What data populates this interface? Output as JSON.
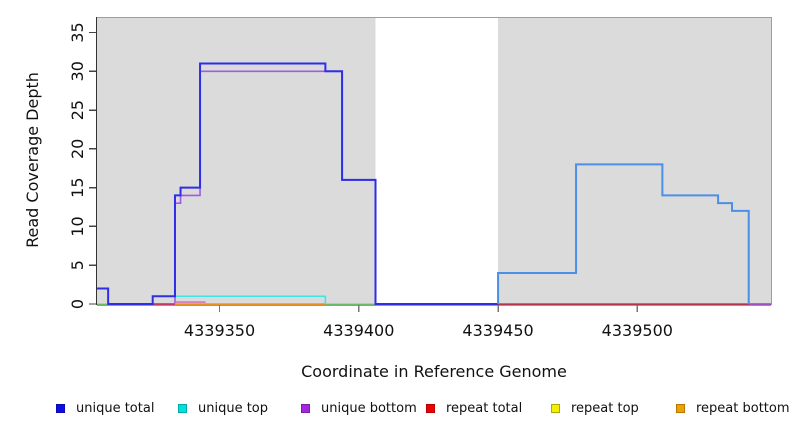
{
  "chart_data": {
    "type": "line",
    "subtype": "step-coverage-plot",
    "title": "",
    "xlabel": "Coordinate in Reference Genome",
    "ylabel": "Read Coverage Depth",
    "xlim": [
      4339306,
      4339548
    ],
    "ylim": [
      0,
      37
    ],
    "grid": false,
    "x_ticks": [
      {
        "value": 4339350,
        "label": "4339350"
      },
      {
        "value": 4339400,
        "label": "4339400"
      },
      {
        "value": 4339450,
        "label": "4339450"
      },
      {
        "value": 4339500,
        "label": "4339500"
      }
    ],
    "y_ticks": [
      {
        "value": 0,
        "label": "0"
      },
      {
        "value": 5,
        "label": "5"
      },
      {
        "value": 10,
        "label": "10"
      },
      {
        "value": 15,
        "label": "15"
      },
      {
        "value": 20,
        "label": "20"
      },
      {
        "value": 25,
        "label": "25"
      },
      {
        "value": 30,
        "label": "30"
      },
      {
        "value": 35,
        "label": "35"
      }
    ],
    "shaded_regions": [
      {
        "x0": 4339306,
        "x1": 4339406,
        "color": "#DBDBDB"
      },
      {
        "x0": 4339450,
        "x1": 4339548,
        "color": "#DBDBDB"
      }
    ],
    "series": [
      {
        "name": "unique total",
        "steps": [
          [
            4339306,
            2
          ],
          [
            4339310,
            0
          ],
          [
            4339326,
            1
          ],
          [
            4339334,
            14
          ],
          [
            4339336,
            15
          ],
          [
            4339343,
            31
          ],
          [
            4339388,
            30
          ],
          [
            4339394,
            16
          ],
          [
            4339406,
            0
          ],
          [
            4339450,
            4
          ],
          [
            4339478,
            18
          ],
          [
            4339509,
            14
          ],
          [
            4339529,
            13
          ],
          [
            4339534,
            12
          ],
          [
            4339540,
            0
          ]
        ],
        "end": 4339548
      },
      {
        "name": "unique top",
        "steps": [
          [
            4339306,
            0
          ],
          [
            4339326,
            1
          ],
          [
            4339388,
            0
          ]
        ],
        "end": 4339548
      },
      {
        "name": "unique bottom",
        "steps": [
          [
            4339306,
            0
          ],
          [
            4339334,
            13
          ],
          [
            4339336,
            14
          ],
          [
            4339343,
            30
          ],
          [
            4339394,
            16
          ],
          [
            4339406,
            0
          ]
        ],
        "end": 4339548
      },
      {
        "name": "repeat total",
        "steps": [
          [
            4339306,
            0
          ]
        ],
        "end": 4339548
      },
      {
        "name": "repeat top",
        "steps": [
          [
            4339306,
            0
          ]
        ],
        "end": 4339548
      },
      {
        "name": "repeat bottom",
        "steps": [
          [
            4339306,
            0
          ]
        ],
        "end": 4339548
      }
    ],
    "render_lines": [
      {
        "name": "unique-bottom",
        "color": "#A25AE6",
        "width": 1.6,
        "steps": [
          [
            4339310,
            0
          ],
          [
            4339334,
            13
          ],
          [
            4339336,
            14
          ],
          [
            4339343,
            30
          ],
          [
            4339394,
            16
          ],
          [
            4339406,
            0
          ]
        ],
        "end": 4339450
      },
      {
        "name": "unique-top",
        "color": "#3FE4E8",
        "width": 1.6,
        "steps": [
          [
            4339326,
            1
          ],
          [
            4339388,
            0
          ]
        ],
        "end": 4339388
      },
      {
        "name": "overlap-green-left",
        "color": "#7FE67F",
        "width": 1.5,
        "steps": [
          [
            4339306,
            0
          ]
        ],
        "end": 4339310
      },
      {
        "name": "overlap-green-mid",
        "color": "#7FE67F",
        "width": 1.5,
        "steps": [
          [
            4339388,
            0
          ]
        ],
        "end": 4339406
      },
      {
        "name": "overlap-pink",
        "color": "#DB5FB0",
        "width": 1.3,
        "steps": [
          [
            4339334,
            0.25
          ]
        ],
        "end": 4339345
      },
      {
        "name": "repeat-bottom",
        "color": "#FF9E1E",
        "width": 1.8,
        "steps": [
          [
            4339334,
            0
          ]
        ],
        "end": 4339388
      },
      {
        "name": "repeat-total-left",
        "color": "#E03558",
        "width": 1.6,
        "steps": [
          [
            4339326,
            0
          ]
        ],
        "end": 4339334
      },
      {
        "name": "repeat-total-right",
        "color": "#E03558",
        "width": 1.6,
        "steps": [
          [
            4339450,
            0
          ]
        ],
        "end": 4339548
      },
      {
        "name": "unique-bottom-tail",
        "color": "#A25AE6",
        "width": 1.6,
        "steps": [
          [
            4339540,
            0
          ]
        ],
        "end": 4339548
      },
      {
        "name": "unique-total-left",
        "color": "#2E2EE8",
        "width": 2.0,
        "steps": [
          [
            4339306,
            2
          ],
          [
            4339310,
            0
          ],
          [
            4339326,
            1
          ],
          [
            4339334,
            14
          ],
          [
            4339336,
            15
          ],
          [
            4339343,
            31
          ],
          [
            4339388,
            30
          ],
          [
            4339394,
            16
          ],
          [
            4339406,
            0
          ]
        ],
        "end": 4339450
      },
      {
        "name": "unique-total-right",
        "color": "#4A8FE8",
        "width": 2.0,
        "steps": [
          [
            4339450,
            0
          ],
          [
            4339450,
            4
          ],
          [
            4339478,
            18
          ],
          [
            4339509,
            14
          ],
          [
            4339529,
            13
          ],
          [
            4339534,
            12
          ],
          [
            4339540,
            0
          ]
        ],
        "end": 4339540
      }
    ],
    "legend": {
      "position": "bottom",
      "items": [
        {
          "label": "unique total",
          "fill": "#0D0DE8",
          "border": "#0A0AB0"
        },
        {
          "label": "unique top",
          "fill": "#00E0E0",
          "border": "#00A8A8"
        },
        {
          "label": "unique bottom",
          "fill": "#A227DE",
          "border": "#7E1CAE"
        },
        {
          "label": "repeat total",
          "fill": "#F00000",
          "border": "#B40000"
        },
        {
          "label": "repeat top",
          "fill": "#F0F000",
          "border": "#ACAC00"
        },
        {
          "label": "repeat bottom",
          "fill": "#F0A000",
          "border": "#B47800"
        }
      ]
    },
    "frame_colors": {
      "left_spine": "#333333",
      "bottom_spine": "#333333",
      "top_spine": "#9E9E9E",
      "right_spine": "#9E9E9E",
      "x_tick_color": "#777777",
      "y_tick_color": "#444444"
    }
  }
}
